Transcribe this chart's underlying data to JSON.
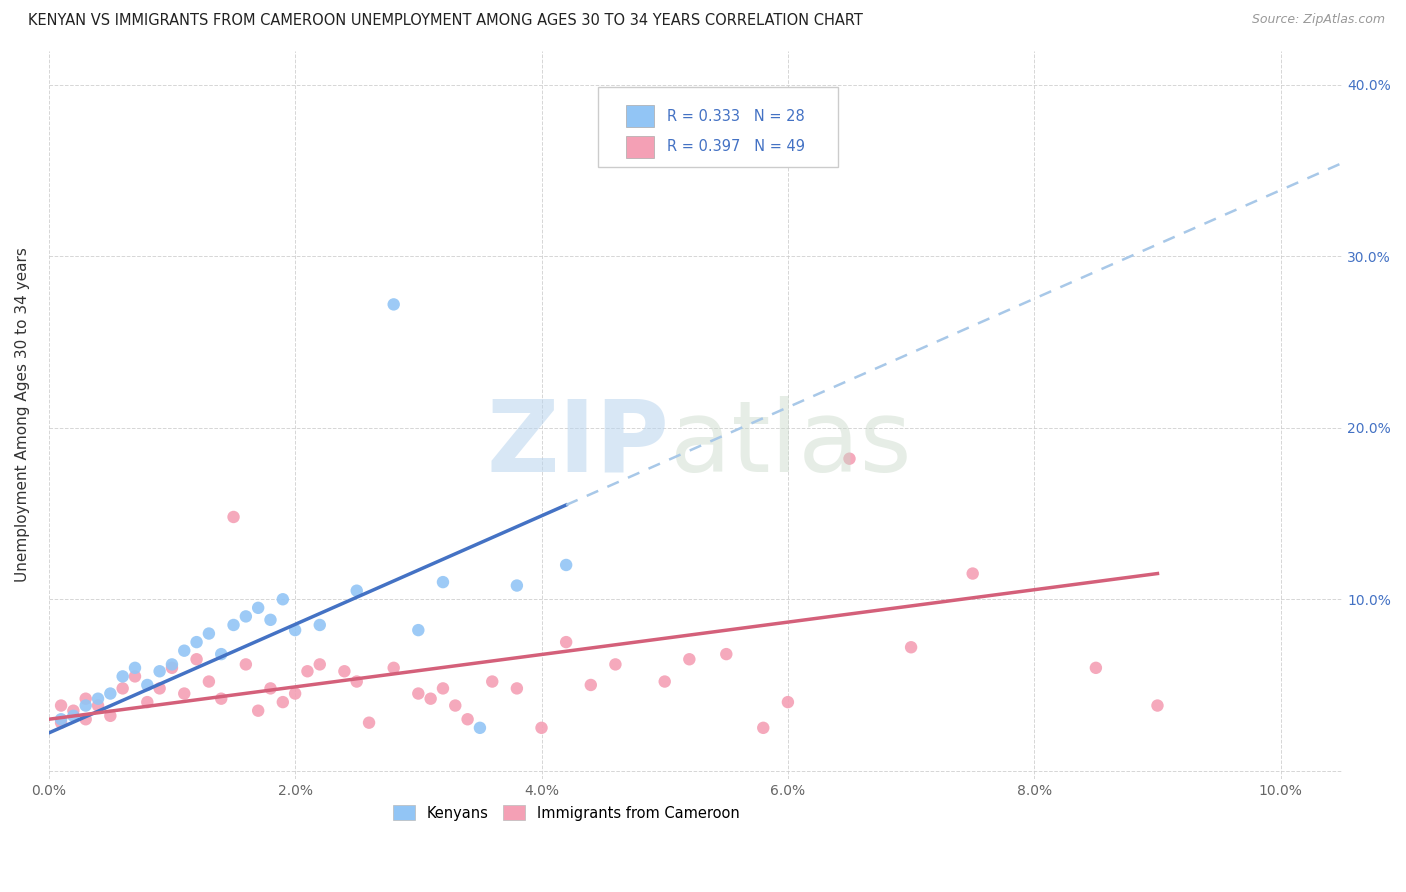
{
  "title": "KENYAN VS IMMIGRANTS FROM CAMEROON UNEMPLOYMENT AMONG AGES 30 TO 34 YEARS CORRELATION CHART",
  "source": "Source: ZipAtlas.com",
  "ylabel": "Unemployment Among Ages 30 to 34 years",
  "xlim": [
    0.0,
    0.105
  ],
  "ylim": [
    -0.005,
    0.42
  ],
  "xticks": [
    0.0,
    0.02,
    0.04,
    0.06,
    0.08,
    0.1
  ],
  "xticklabels": [
    "0.0%",
    "2.0%",
    "4.0%",
    "6.0%",
    "8.0%",
    "10.0%"
  ],
  "yticks_left": [
    0.0,
    0.1,
    0.2,
    0.3,
    0.4
  ],
  "yticklabels_left": [
    "",
    "",
    "",
    "",
    ""
  ],
  "yticks_right": [
    0.1,
    0.2,
    0.3,
    0.4
  ],
  "yticklabels_right": [
    "10.0%",
    "20.0%",
    "30.0%",
    "40.0%"
  ],
  "kenyan_color": "#92c5f5",
  "cameroon_color": "#f4a0b5",
  "kenyan_R": 0.333,
  "kenyan_N": 28,
  "cameroon_R": 0.397,
  "cameroon_N": 49,
  "trend_blue": "#4472c4",
  "trend_pink": "#d4607a",
  "trend_blue_dashed": "#a8c8e8",
  "kenyan_x": [
    0.001,
    0.002,
    0.003,
    0.004,
    0.005,
    0.006,
    0.007,
    0.008,
    0.009,
    0.01,
    0.011,
    0.012,
    0.013,
    0.014,
    0.015,
    0.016,
    0.017,
    0.018,
    0.019,
    0.02,
    0.022,
    0.025,
    0.028,
    0.03,
    0.032,
    0.035,
    0.038,
    0.042
  ],
  "kenyan_y": [
    0.03,
    0.032,
    0.038,
    0.042,
    0.045,
    0.055,
    0.06,
    0.05,
    0.058,
    0.062,
    0.07,
    0.075,
    0.08,
    0.068,
    0.085,
    0.09,
    0.095,
    0.088,
    0.1,
    0.082,
    0.085,
    0.105,
    0.272,
    0.082,
    0.11,
    0.025,
    0.108,
    0.12
  ],
  "cameroon_x": [
    0.001,
    0.001,
    0.002,
    0.003,
    0.003,
    0.004,
    0.005,
    0.006,
    0.007,
    0.008,
    0.009,
    0.01,
    0.011,
    0.012,
    0.013,
    0.014,
    0.015,
    0.016,
    0.017,
    0.018,
    0.019,
    0.02,
    0.021,
    0.022,
    0.024,
    0.025,
    0.026,
    0.028,
    0.03,
    0.031,
    0.032,
    0.033,
    0.034,
    0.036,
    0.038,
    0.04,
    0.042,
    0.044,
    0.046,
    0.05,
    0.052,
    0.055,
    0.058,
    0.06,
    0.065,
    0.07,
    0.075,
    0.085,
    0.09
  ],
  "cameroon_y": [
    0.028,
    0.038,
    0.035,
    0.03,
    0.042,
    0.038,
    0.032,
    0.048,
    0.055,
    0.04,
    0.048,
    0.06,
    0.045,
    0.065,
    0.052,
    0.042,
    0.148,
    0.062,
    0.035,
    0.048,
    0.04,
    0.045,
    0.058,
    0.062,
    0.058,
    0.052,
    0.028,
    0.06,
    0.045,
    0.042,
    0.048,
    0.038,
    0.03,
    0.052,
    0.048,
    0.025,
    0.075,
    0.05,
    0.062,
    0.052,
    0.065,
    0.068,
    0.025,
    0.04,
    0.182,
    0.072,
    0.115,
    0.06,
    0.038
  ],
  "trend_blue_x_start": 0.001,
  "trend_blue_x_end": 0.042,
  "trend_blue_ext_end": 0.105,
  "trend_pink_x_start": 0.001,
  "trend_pink_x_end": 0.09
}
